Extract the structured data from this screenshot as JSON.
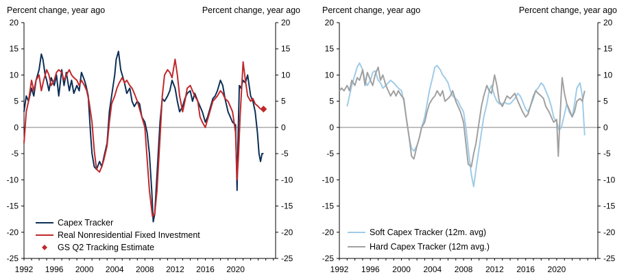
{
  "colors": {
    "capex": "#0b2e55",
    "rnfi": "#c0282b",
    "soft": "#9fcbe7",
    "hard": "#a0a0a0",
    "axis": "#000000",
    "zero_line": "#808080"
  },
  "chart_data": [
    {
      "type": "line",
      "ylabel_left": "Percent change, year ago",
      "ylabel_right": "Percent change, year ago",
      "xlim": [
        1992.0,
        2025.3
      ],
      "ylim": [
        -25,
        20
      ],
      "x_ticks": [
        1992,
        1996,
        2000,
        2004,
        2008,
        2012,
        2016,
        2020
      ],
      "y_ticks": [
        20,
        15,
        10,
        5,
        0,
        -5,
        -10,
        -15,
        -20,
        -25
      ],
      "grid": false,
      "legend_position": "bottom-left",
      "series": [
        {
          "name": "Capex Tracker",
          "color": "#0b2e55",
          "x": [
            1992.0,
            1992.3,
            1992.6,
            1993.0,
            1993.3,
            1993.6,
            1994.0,
            1994.3,
            1994.5,
            1994.8,
            1995.0,
            1995.3,
            1995.6,
            1996.0,
            1996.3,
            1996.6,
            1997.0,
            1997.3,
            1997.6,
            1998.0,
            1998.3,
            1998.6,
            1999.0,
            1999.3,
            1999.6,
            2000.0,
            2000.2,
            2000.5,
            2000.8,
            2001.0,
            2001.3,
            2001.6,
            2002.0,
            2002.3,
            2002.6,
            2003.0,
            2003.3,
            2003.6,
            2004.0,
            2004.2,
            2004.5,
            2004.8,
            2005.0,
            2005.3,
            2005.6,
            2006.0,
            2006.3,
            2006.6,
            2007.0,
            2007.3,
            2007.6,
            2008.0,
            2008.3,
            2008.6,
            2008.9,
            2009.1,
            2009.3,
            2009.6,
            2010.0,
            2010.3,
            2010.6,
            2011.0,
            2011.3,
            2011.6,
            2012.0,
            2012.3,
            2012.6,
            2013.0,
            2013.3,
            2013.6,
            2014.0,
            2014.3,
            2014.6,
            2015.0,
            2015.3,
            2015.6,
            2016.0,
            2016.3,
            2016.6,
            2017.0,
            2017.3,
            2017.6,
            2018.0,
            2018.3,
            2018.6,
            2019.0,
            2019.3,
            2019.6,
            2020.0,
            2020.2,
            2020.35,
            2020.5,
            2020.7,
            2021.0,
            2021.3,
            2021.6,
            2022.0,
            2022.3,
            2022.6,
            2022.9,
            2023.1,
            2023.3,
            2023.5,
            2023.7
          ],
          "values": [
            3.0,
            6.0,
            5.0,
            7.5,
            6.0,
            9.0,
            11.0,
            14.0,
            13.0,
            10.0,
            9.0,
            7.0,
            9.5,
            8.0,
            10.0,
            6.0,
            11.0,
            8.0,
            10.5,
            7.0,
            9.0,
            6.5,
            8.0,
            7.0,
            10.5,
            9.0,
            8.0,
            6.0,
            -1.0,
            -5.0,
            -7.5,
            -8.0,
            -6.5,
            -7.5,
            -5.5,
            -3.0,
            3.0,
            6.0,
            10.0,
            13.0,
            14.5,
            11.0,
            10.0,
            8.5,
            6.5,
            7.5,
            5.0,
            4.0,
            5.0,
            4.5,
            2.0,
            1.0,
            -1.0,
            -5.0,
            -12.0,
            -18.0,
            -16.5,
            -9.0,
            1.0,
            5.5,
            5.0,
            6.0,
            7.0,
            9.0,
            7.5,
            5.0,
            3.0,
            4.0,
            5.5,
            6.5,
            7.0,
            5.0,
            6.5,
            5.0,
            4.0,
            3.0,
            1.0,
            2.0,
            3.5,
            5.5,
            6.0,
            7.0,
            9.0,
            8.0,
            5.5,
            3.0,
            2.0,
            1.0,
            0.5,
            -12.0,
            -1.0,
            8.0,
            7.5,
            9.0,
            8.5,
            10.0,
            6.0,
            5.0,
            3.0,
            -1.0,
            -5.0,
            -6.5,
            -5.0,
            -5.0
          ]
        },
        {
          "name": "Real Nonresidential Fixed Investment",
          "color": "#c0282b",
          "x": [
            1992.0,
            1992.3,
            1992.6,
            1993.0,
            1993.3,
            1993.6,
            1994.0,
            1994.3,
            1994.6,
            1995.0,
            1995.3,
            1995.6,
            1996.0,
            1996.3,
            1996.6,
            1997.0,
            1997.3,
            1997.6,
            1998.0,
            1998.3,
            1998.6,
            1999.0,
            1999.3,
            1999.6,
            2000.0,
            2000.3,
            2000.6,
            2001.0,
            2001.3,
            2001.6,
            2002.0,
            2002.3,
            2002.6,
            2003.0,
            2003.3,
            2003.6,
            2004.0,
            2004.3,
            2004.6,
            2005.0,
            2005.3,
            2005.6,
            2006.0,
            2006.3,
            2006.6,
            2007.0,
            2007.3,
            2007.6,
            2008.0,
            2008.3,
            2008.6,
            2009.0,
            2009.3,
            2009.6,
            2010.0,
            2010.3,
            2010.6,
            2011.0,
            2011.3,
            2011.6,
            2012.0,
            2012.3,
            2012.6,
            2013.0,
            2013.3,
            2013.6,
            2014.0,
            2014.3,
            2014.6,
            2015.0,
            2015.3,
            2015.6,
            2016.0,
            2016.3,
            2016.6,
            2017.0,
            2017.3,
            2017.6,
            2018.0,
            2018.3,
            2018.6,
            2019.0,
            2019.3,
            2019.6,
            2020.0,
            2020.2,
            2020.4,
            2020.6,
            2021.0,
            2021.3,
            2021.6,
            2022.0,
            2022.3,
            2022.6,
            2023.0,
            2023.3
          ],
          "values": [
            -3.0,
            3.0,
            5.0,
            9.0,
            7.0,
            9.0,
            10.0,
            7.0,
            9.0,
            11.0,
            10.0,
            8.0,
            9.0,
            10.5,
            11.0,
            10.5,
            9.0,
            10.0,
            11.0,
            10.0,
            9.5,
            9.0,
            8.0,
            9.0,
            8.0,
            7.0,
            5.0,
            1.0,
            -4.5,
            -8.0,
            -8.5,
            -7.5,
            -6.0,
            -3.5,
            1.0,
            4.5,
            6.0,
            7.5,
            8.5,
            9.5,
            8.5,
            9.0,
            8.0,
            7.5,
            6.5,
            5.0,
            3.5,
            2.0,
            0.0,
            -6.0,
            -12.0,
            -17.0,
            -16.5,
            -12.0,
            -2.0,
            6.0,
            10.0,
            11.0,
            10.5,
            9.5,
            13.0,
            10.0,
            6.0,
            3.0,
            5.0,
            7.5,
            8.0,
            7.0,
            6.0,
            5.0,
            2.0,
            1.0,
            0.0,
            1.5,
            3.0,
            5.0,
            5.5,
            6.0,
            7.0,
            6.5,
            5.5,
            5.0,
            4.0,
            3.0,
            -1.0,
            -10.0,
            -5.0,
            2.0,
            12.5,
            9.0,
            6.0,
            5.0,
            5.5,
            4.5,
            4.0,
            3.5
          ]
        }
      ],
      "markers": [
        {
          "name": "GS Q2 Tracking Estimate",
          "color": "#c0282b",
          "x": 2023.7,
          "value": 3.5
        }
      ]
    },
    {
      "type": "line",
      "ylabel_left": "Percent change, year ago",
      "ylabel_right": "Percent change, year ago",
      "xlim": [
        1992.0,
        2025.3
      ],
      "ylim": [
        -25,
        20
      ],
      "x_ticks": [
        1992,
        1996,
        2000,
        2004,
        2008,
        2012,
        2016,
        2020
      ],
      "y_ticks": [
        20,
        15,
        10,
        5,
        0,
        -5,
        -10,
        -15,
        -20,
        -25
      ],
      "grid": false,
      "legend_position": "bottom-left",
      "series": [
        {
          "name": "Soft Capex Tracker (12m. avg)",
          "color": "#9fcbe7",
          "x": [
            1993.0,
            1993.3,
            1993.6,
            1994.0,
            1994.3,
            1994.6,
            1995.0,
            1995.3,
            1995.6,
            1996.0,
            1996.3,
            1996.6,
            1997.0,
            1997.3,
            1997.6,
            1998.0,
            1998.3,
            1998.6,
            1999.0,
            1999.3,
            1999.6,
            2000.0,
            2000.3,
            2000.6,
            2001.0,
            2001.3,
            2001.6,
            2002.0,
            2002.3,
            2002.6,
            2003.0,
            2003.3,
            2003.6,
            2004.0,
            2004.3,
            2004.6,
            2005.0,
            2005.3,
            2005.6,
            2006.0,
            2006.3,
            2006.6,
            2007.0,
            2007.3,
            2007.6,
            2008.0,
            2008.3,
            2008.6,
            2009.0,
            2009.3,
            2009.6,
            2010.0,
            2010.3,
            2010.6,
            2011.0,
            2011.3,
            2011.6,
            2012.0,
            2012.3,
            2012.6,
            2013.0,
            2013.3,
            2013.6,
            2014.0,
            2014.3,
            2014.6,
            2015.0,
            2015.3,
            2015.6,
            2016.0,
            2016.3,
            2016.6,
            2017.0,
            2017.3,
            2017.6,
            2018.0,
            2018.3,
            2018.6,
            2019.0,
            2019.3,
            2019.6,
            2020.0,
            2020.3,
            2020.6,
            2021.0,
            2021.3,
            2021.6,
            2022.0,
            2022.3,
            2022.6,
            2023.0,
            2023.3,
            2023.6
          ],
          "values": [
            4.0,
            6.0,
            8.0,
            10.0,
            11.5,
            12.3,
            11.0,
            9.0,
            8.0,
            9.0,
            10.5,
            10.8,
            9.0,
            8.5,
            7.5,
            8.0,
            8.5,
            9.0,
            8.5,
            8.0,
            7.5,
            7.0,
            5.0,
            2.0,
            -2.0,
            -4.0,
            -4.5,
            -3.5,
            -2.0,
            0.0,
            2.0,
            4.5,
            7.0,
            9.5,
            11.5,
            11.8,
            11.0,
            10.0,
            9.5,
            8.5,
            7.0,
            6.0,
            5.5,
            5.0,
            4.0,
            3.0,
            0.0,
            -4.0,
            -9.0,
            -11.3,
            -8.0,
            -4.0,
            -1.0,
            2.0,
            4.5,
            7.0,
            8.0,
            6.0,
            5.0,
            4.5,
            4.5,
            4.8,
            4.5,
            4.5,
            5.0,
            5.5,
            6.5,
            6.0,
            5.0,
            3.5,
            3.0,
            4.0,
            5.5,
            7.0,
            7.5,
            8.5,
            8.0,
            7.0,
            5.5,
            4.0,
            2.0,
            1.0,
            -0.5,
            0.0,
            2.5,
            4.5,
            3.0,
            2.0,
            4.5,
            7.5,
            8.5,
            6.0,
            -1.5
          ]
        },
        {
          "name": "Hard Capex Tracker (12m avg.)",
          "color": "#a0a0a0",
          "x": [
            1992.0,
            1992.3,
            1992.6,
            1993.0,
            1993.3,
            1993.6,
            1994.0,
            1994.3,
            1994.6,
            1995.0,
            1995.3,
            1995.6,
            1996.0,
            1996.3,
            1996.6,
            1997.0,
            1997.3,
            1997.6,
            1998.0,
            1998.3,
            1998.6,
            1999.0,
            1999.3,
            1999.6,
            2000.0,
            2000.3,
            2000.6,
            2001.0,
            2001.3,
            2001.6,
            2002.0,
            2002.3,
            2002.6,
            2003.0,
            2003.3,
            2003.6,
            2004.0,
            2004.3,
            2004.6,
            2005.0,
            2005.3,
            2005.6,
            2006.0,
            2006.3,
            2006.6,
            2007.0,
            2007.3,
            2007.6,
            2008.0,
            2008.3,
            2008.6,
            2009.0,
            2009.3,
            2009.6,
            2010.0,
            2010.3,
            2010.6,
            2011.0,
            2011.3,
            2011.6,
            2012.0,
            2012.3,
            2012.6,
            2013.0,
            2013.3,
            2013.6,
            2014.0,
            2014.3,
            2014.6,
            2015.0,
            2015.3,
            2015.6,
            2016.0,
            2016.3,
            2016.6,
            2017.0,
            2017.3,
            2017.6,
            2018.0,
            2018.3,
            2018.6,
            2019.0,
            2019.3,
            2019.6,
            2020.0,
            2020.2,
            2020.4,
            2020.7,
            2021.0,
            2021.3,
            2021.6,
            2022.0,
            2022.3,
            2022.6,
            2023.0,
            2023.3,
            2023.6
          ],
          "values": [
            7.0,
            7.5,
            7.0,
            8.0,
            7.0,
            9.0,
            8.0,
            9.5,
            9.0,
            11.0,
            8.0,
            10.5,
            9.0,
            8.0,
            10.0,
            11.5,
            9.0,
            10.0,
            8.0,
            7.0,
            6.0,
            7.0,
            6.0,
            7.0,
            6.0,
            5.5,
            2.0,
            -2.0,
            -5.5,
            -6.0,
            -3.5,
            -2.0,
            0.0,
            1.0,
            3.0,
            4.5,
            5.5,
            6.0,
            7.0,
            6.0,
            7.0,
            5.0,
            5.5,
            6.0,
            7.0,
            5.0,
            4.0,
            3.0,
            1.0,
            -3.0,
            -7.0,
            -7.5,
            -5.0,
            -3.0,
            1.0,
            4.0,
            6.0,
            8.0,
            7.0,
            6.5,
            10.0,
            8.0,
            5.0,
            4.0,
            5.0,
            6.0,
            5.5,
            6.0,
            6.5,
            5.0,
            4.0,
            3.0,
            2.0,
            2.5,
            4.0,
            6.0,
            7.0,
            6.5,
            6.0,
            5.5,
            4.0,
            3.0,
            2.0,
            1.0,
            1.5,
            -5.5,
            1.0,
            9.5,
            6.5,
            4.5,
            3.5,
            2.0,
            3.0,
            5.0,
            5.5,
            5.0,
            7.0
          ]
        }
      ]
    }
  ]
}
